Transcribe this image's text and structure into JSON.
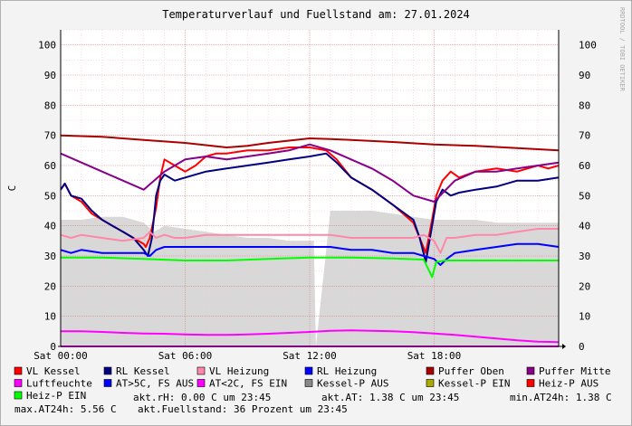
{
  "chart_data": {
    "type": "line",
    "title": "Temperaturverlauf und Fuellstand am: 27.01.2024",
    "ylabel": "C",
    "side_label": "RRDTOOL / TOBI OETIKER",
    "ylim": [
      0,
      105
    ],
    "yticks": [
      0,
      10,
      20,
      30,
      40,
      50,
      60,
      70,
      80,
      90,
      100
    ],
    "x_range_hours": [
      0,
      24
    ],
    "x_tick_hours": [
      0,
      6,
      12,
      18
    ],
    "x_tick_labels": [
      "Sat 00:00",
      "Sat 06:00",
      "Sat 12:00",
      "Sat 18:00"
    ],
    "grid": true,
    "series": [
      {
        "name": "VL Kessel",
        "color": "#ff0000",
        "x": [
          0,
          0.2,
          0.5,
          1,
          1.5,
          2,
          2.5,
          3,
          3.5,
          4,
          4.1,
          4.3,
          4.6,
          4.8,
          5,
          5.5,
          6,
          6.5,
          7,
          7.5,
          8,
          9,
          10,
          11,
          12,
          12.8,
          13.3,
          14,
          15,
          16,
          17,
          17.3,
          17.6,
          17.9,
          18.1,
          18.4,
          18.8,
          19.2,
          20,
          21,
          22,
          22.5,
          23,
          23.5,
          24
        ],
        "y": [
          52,
          54,
          50,
          48,
          44,
          42,
          40,
          38,
          36,
          34,
          33,
          36,
          46,
          56,
          62,
          60,
          58,
          60,
          63,
          64,
          64,
          65,
          65,
          66,
          66,
          65,
          62,
          56,
          52,
          47,
          41,
          36,
          31,
          42,
          50,
          55,
          58,
          56,
          58,
          59,
          58,
          59,
          60,
          59,
          60
        ]
      },
      {
        "name": "RL Kessel",
        "color": "#000080",
        "x": [
          0,
          0.2,
          0.5,
          1,
          1.5,
          2,
          2.5,
          3,
          3.5,
          4,
          4.2,
          4.4,
          4.6,
          4.8,
          5,
          5.5,
          6,
          7,
          8,
          9,
          10,
          11,
          12,
          12.8,
          13.3,
          14,
          15,
          16,
          17,
          17.3,
          17.6,
          17.9,
          18.1,
          18.4,
          18.8,
          19.2,
          20,
          21,
          22,
          23,
          24
        ],
        "y": [
          52,
          54,
          50,
          49,
          45,
          42,
          40,
          38,
          36,
          32,
          30,
          36,
          50,
          55,
          57,
          55,
          56,
          58,
          59,
          60,
          61,
          62,
          63,
          64,
          61,
          56,
          52,
          47,
          42,
          36,
          28,
          40,
          48,
          52,
          50,
          51,
          52,
          53,
          55,
          55,
          56
        ]
      },
      {
        "name": "VL Heizung",
        "color": "#ff88aa",
        "x": [
          0,
          0.5,
          1,
          2,
          3,
          4,
          4.3,
          4.6,
          5,
          5.5,
          6,
          7,
          8,
          9,
          10,
          11,
          12,
          13,
          14,
          15,
          16,
          17,
          17.5,
          18,
          18.3,
          18.6,
          19,
          20,
          21,
          22,
          23,
          24
        ],
        "y": [
          37,
          36,
          37,
          36,
          35,
          36,
          38,
          36,
          37,
          36,
          36,
          37,
          37,
          37,
          37,
          37,
          37,
          37,
          36,
          36,
          36,
          36,
          37,
          35,
          31,
          36,
          36,
          37,
          37,
          38,
          39,
          39
        ]
      },
      {
        "name": "RL Heizung",
        "color": "#0000ff",
        "x": [
          0,
          0.5,
          1,
          2,
          3,
          4,
          4.3,
          4.6,
          5,
          6,
          7,
          8,
          9,
          10,
          11,
          12,
          13,
          14,
          15,
          16,
          17,
          17.5,
          18,
          18.3,
          18.6,
          19,
          20,
          21,
          22,
          23,
          24
        ],
        "y": [
          32,
          31,
          32,
          31,
          31,
          31,
          30,
          32,
          33,
          33,
          33,
          33,
          33,
          33,
          33,
          33,
          33,
          32,
          32,
          31,
          31,
          30,
          29,
          27,
          29,
          31,
          32,
          33,
          34,
          34,
          33
        ]
      },
      {
        "name": "Puffer Oben",
        "color": "#aa0000",
        "x": [
          0,
          2,
          4,
          6,
          8,
          9,
          10,
          12,
          13,
          14,
          16,
          18,
          20,
          22,
          24
        ],
        "y": [
          70,
          69.5,
          68.5,
          67.5,
          66,
          66.5,
          67.5,
          69,
          68.8,
          68.5,
          67.8,
          67,
          66.5,
          65.8,
          65
        ]
      },
      {
        "name": "Puffer Mitte",
        "color": "#880088",
        "x": [
          0,
          1,
          2,
          3,
          4,
          5,
          6,
          7,
          8,
          9,
          10,
          11,
          12,
          13,
          14,
          15,
          16,
          17,
          18,
          19,
          20,
          21,
          22,
          23,
          24
        ],
        "y": [
          64,
          61,
          58,
          55,
          52,
          58,
          62,
          63,
          62,
          63,
          64,
          65,
          67,
          65,
          62,
          59,
          55,
          50,
          48,
          55,
          58,
          58,
          59,
          60,
          61
        ]
      },
      {
        "name": "Luftfeuchte",
        "color": "#ff00ff",
        "x": [
          0,
          24
        ],
        "y": [
          0,
          0
        ]
      },
      {
        "name": "AT>5C, FS AUS",
        "color": "#0000ff",
        "x": [],
        "y": []
      },
      {
        "name": "AT<2C, FS EIN",
        "color": "#ff00ff",
        "x": [
          0,
          1,
          2,
          3,
          4,
          5,
          6,
          7,
          8,
          9,
          10,
          11,
          12,
          13,
          14,
          15,
          16,
          17,
          18,
          19,
          20,
          21,
          22,
          23,
          24
        ],
        "y": [
          5,
          5,
          4.8,
          4.5,
          4.3,
          4.2,
          4,
          3.8,
          3.8,
          4,
          4.2,
          4.5,
          4.8,
          5.2,
          5.3,
          5.2,
          5,
          4.7,
          4.3,
          3.8,
          3.2,
          2.6,
          2,
          1.6,
          1.4
        ]
      },
      {
        "name": "Kessel-P AUS",
        "color": "#888888",
        "fill": "#d8d8d8",
        "x": [
          0,
          1,
          2,
          3,
          4,
          4.5,
          5,
          6,
          7,
          8,
          9,
          10,
          11,
          12,
          12.2,
          12.3,
          13,
          14,
          15,
          16,
          17,
          18,
          19,
          20,
          21,
          22,
          23,
          24
        ],
        "y": [
          42,
          42,
          43,
          43,
          41,
          38,
          40,
          39,
          38,
          37,
          36,
          36,
          35,
          35,
          35,
          0,
          45,
          45,
          45,
          44,
          43,
          42,
          42,
          42,
          41,
          41,
          41,
          41
        ]
      },
      {
        "name": "Kessel-P EIN",
        "color": "#aaaa00",
        "x": [],
        "y": []
      },
      {
        "name": "Heiz-P AUS",
        "color": "#ff0000",
        "x": [],
        "y": []
      },
      {
        "name": "Heiz-P EIN",
        "color": "#00ff00",
        "x": [
          0,
          2,
          4,
          6,
          8,
          10,
          12,
          14,
          16,
          17.5,
          17.9,
          18.1,
          18.5,
          20,
          22,
          24
        ],
        "y": [
          29.5,
          29.5,
          29,
          28.5,
          28.5,
          29,
          29.5,
          29.5,
          29.2,
          28.8,
          23,
          28,
          28.5,
          28.5,
          28.5,
          28.5
        ]
      }
    ],
    "stats_lines": [
      [
        "akt.rH: 0.00 C um 23:45",
        "akt.AT: 1.38 C um 23:45",
        "min.AT24h: 1.38 C"
      ],
      [
        "max.AT24h: 5.56 C",
        "akt.Fuellstand:   36 Prozent um 23:45"
      ]
    ]
  }
}
